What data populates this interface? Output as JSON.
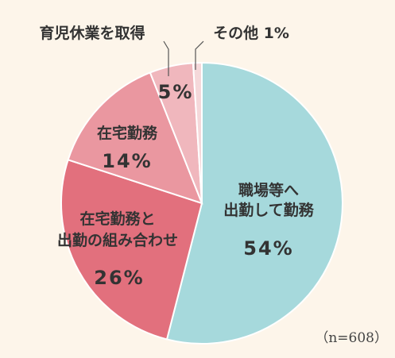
{
  "chart_data": {
    "type": "pie",
    "n_label": "（n=608）",
    "start": "12 o'clock",
    "direction": "clockwise",
    "slices": [
      {
        "name_lines": [
          "職場等へ",
          "出勤して勤務"
        ],
        "value": 54,
        "value_label": "54%",
        "color": "#a6d9dc"
      },
      {
        "name_lines": [
          "在宅勤務と",
          "出勤の組み合わせ"
        ],
        "value": 26,
        "value_label": "26%",
        "color": "#e2707d"
      },
      {
        "name_lines": [
          "在宅勤務"
        ],
        "value": 14,
        "value_label": "14%",
        "color": "#ea97a0"
      },
      {
        "name_lines": [
          "育児休業を取得"
        ],
        "value": 5,
        "value_label": "5%",
        "color": "#f0b7bd"
      },
      {
        "name_lines": [
          "その他 1%"
        ],
        "value": 1,
        "value_label": "",
        "color": "#f5d8da"
      }
    ]
  }
}
